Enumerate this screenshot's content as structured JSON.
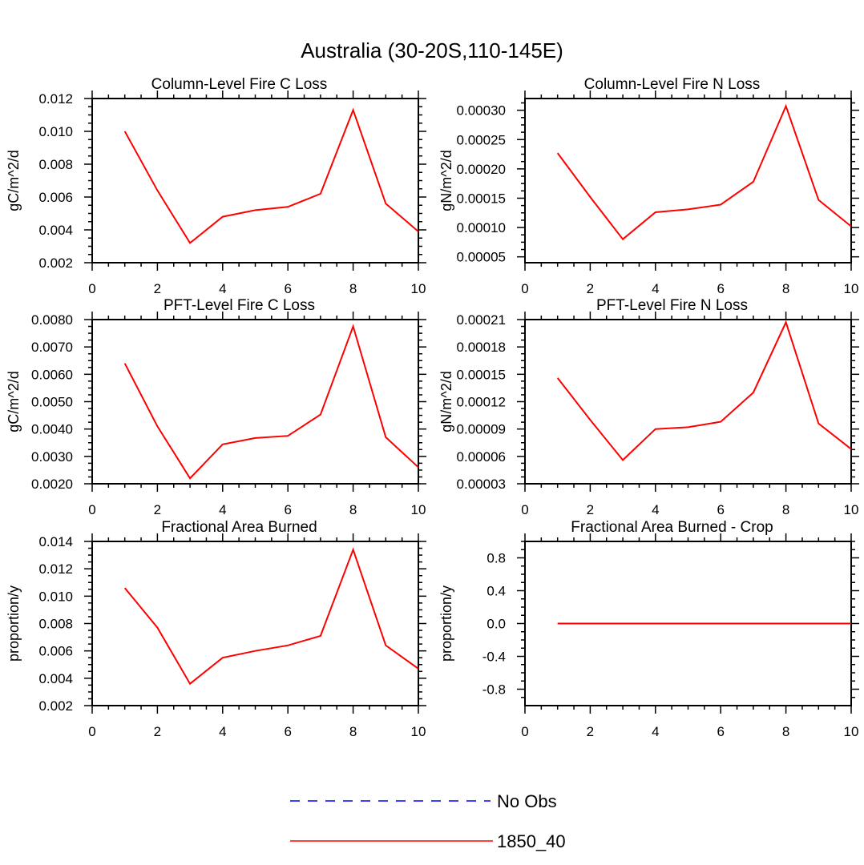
{
  "title": "Australia (30-20S,110-145E)",
  "colors": {
    "series": "#ff0000",
    "obs": "#0000ff",
    "axis": "#000000"
  },
  "legend": [
    {
      "label": "No Obs",
      "color": "#0000ff",
      "style": "dashed"
    },
    {
      "label": "1850_40",
      "color": "#ff0000",
      "style": "solid"
    }
  ],
  "chart_data": [
    {
      "type": "line",
      "title": "Column-Level Fire C Loss",
      "ylabel": "gC/m^2/d",
      "xlim": [
        0,
        10
      ],
      "ylim": [
        0.002,
        0.012
      ],
      "xticks": [
        0,
        2,
        4,
        6,
        8,
        10
      ],
      "xtick_labels": [
        "0",
        "2",
        "4",
        "6",
        "8",
        "10"
      ],
      "yticks": [
        0.002,
        0.004,
        0.006,
        0.008,
        0.01,
        0.012
      ],
      "ytick_labels": [
        "0.002",
        "0.004",
        "0.006",
        "0.008",
        "0.010",
        "0.012"
      ],
      "series": [
        {
          "name": "1850_40",
          "x": [
            1,
            2,
            3,
            4,
            5,
            6,
            7,
            8,
            9,
            10
          ],
          "values": [
            0.01,
            0.0064,
            0.0032,
            0.0048,
            0.0052,
            0.0054,
            0.0062,
            0.0113,
            0.0056,
            0.0039
          ]
        }
      ]
    },
    {
      "type": "line",
      "title": "Column-Level Fire N Loss",
      "ylabel": "gN/m^2/d",
      "xlim": [
        0,
        10
      ],
      "ylim": [
        4e-05,
        0.00032
      ],
      "xticks": [
        0,
        2,
        4,
        6,
        8,
        10
      ],
      "xtick_labels": [
        "0",
        "2",
        "4",
        "6",
        "8",
        "10"
      ],
      "yticks": [
        5e-05,
        0.0001,
        0.00015,
        0.0002,
        0.00025,
        0.0003
      ],
      "ytick_labels": [
        "0.00005",
        "0.00010",
        "0.00015",
        "0.00020",
        "0.00025",
        "0.00030"
      ],
      "series": [
        {
          "name": "1850_40",
          "x": [
            1,
            2,
            3,
            4,
            5,
            6,
            7,
            8,
            9,
            10
          ],
          "values": [
            0.000227,
            0.000152,
            8e-05,
            0.000126,
            0.000131,
            0.000139,
            0.000178,
            0.000307,
            0.000147,
            0.000102
          ]
        }
      ]
    },
    {
      "type": "line",
      "title": "PFT-Level Fire C Loss",
      "ylabel": "gC/m^2/d",
      "xlim": [
        0,
        10
      ],
      "ylim": [
        0.002,
        0.008
      ],
      "xticks": [
        0,
        2,
        4,
        6,
        8,
        10
      ],
      "xtick_labels": [
        "0",
        "2",
        "4",
        "6",
        "8",
        "10"
      ],
      "yticks": [
        0.002,
        0.003,
        0.004,
        0.005,
        0.006,
        0.007,
        0.008
      ],
      "ytick_labels": [
        "0.0020",
        "0.0030",
        "0.0040",
        "0.0050",
        "0.0060",
        "0.0070",
        "0.0080"
      ],
      "series": [
        {
          "name": "1850_40",
          "x": [
            1,
            2,
            3,
            4,
            5,
            6,
            7,
            8,
            9,
            10
          ],
          "values": [
            0.0064,
            0.0041,
            0.0022,
            0.00344,
            0.00367,
            0.00375,
            0.00453,
            0.00775,
            0.0037,
            0.0026
          ]
        }
      ]
    },
    {
      "type": "line",
      "title": "PFT-Level Fire N Loss",
      "ylabel": "gN/m^2/d",
      "xlim": [
        0,
        10
      ],
      "ylim": [
        3e-05,
        0.00021
      ],
      "xticks": [
        0,
        2,
        4,
        6,
        8,
        10
      ],
      "xtick_labels": [
        "0",
        "2",
        "4",
        "6",
        "8",
        "10"
      ],
      "yticks": [
        3e-05,
        6e-05,
        9e-05,
        0.00012,
        0.00015,
        0.00018,
        0.00021
      ],
      "ytick_labels": [
        "0.00003",
        "0.00006",
        "0.00009",
        "0.00012",
        "0.00015",
        "0.00018",
        "0.00021"
      ],
      "series": [
        {
          "name": "1850_40",
          "x": [
            1,
            2,
            3,
            4,
            5,
            6,
            7,
            8,
            9,
            10
          ],
          "values": [
            0.000146,
            0.0001,
            5.6e-05,
            9e-05,
            9.2e-05,
            9.8e-05,
            0.00013,
            0.000207,
            9.6e-05,
            6.8e-05
          ]
        }
      ]
    },
    {
      "type": "line",
      "title": "Fractional Area Burned",
      "ylabel": "proportion/y",
      "xlim": [
        0,
        10
      ],
      "ylim": [
        0.002,
        0.014
      ],
      "xticks": [
        0,
        2,
        4,
        6,
        8,
        10
      ],
      "xtick_labels": [
        "0",
        "2",
        "4",
        "6",
        "8",
        "10"
      ],
      "yticks": [
        0.002,
        0.004,
        0.006,
        0.008,
        0.01,
        0.012,
        0.014
      ],
      "ytick_labels": [
        "0.002",
        "0.004",
        "0.006",
        "0.008",
        "0.010",
        "0.012",
        "0.014"
      ],
      "series": [
        {
          "name": "1850_40",
          "x": [
            1,
            2,
            3,
            4,
            5,
            6,
            7,
            8,
            9,
            10
          ],
          "values": [
            0.0106,
            0.0077,
            0.0036,
            0.0055,
            0.006,
            0.0064,
            0.0071,
            0.0134,
            0.0064,
            0.0047
          ]
        }
      ]
    },
    {
      "type": "line",
      "title": "Fractional Area Burned - Crop",
      "ylabel": "proportion/y",
      "xlim": [
        0,
        10
      ],
      "ylim": [
        -1.0,
        1.0
      ],
      "xticks": [
        0,
        2,
        4,
        6,
        8,
        10
      ],
      "xtick_labels": [
        "0",
        "2",
        "4",
        "6",
        "8",
        "10"
      ],
      "yticks": [
        -0.8,
        -0.4,
        0.0,
        0.4,
        0.8
      ],
      "ytick_labels": [
        "-0.8",
        "-0.4",
        "0.0",
        "0.4",
        "0.8"
      ],
      "series": [
        {
          "name": "1850_40",
          "x": [
            1,
            2,
            3,
            4,
            5,
            6,
            7,
            8,
            9,
            10
          ],
          "values": [
            0,
            0,
            0,
            0,
            0,
            0,
            0,
            0,
            0,
            0
          ]
        }
      ]
    }
  ]
}
